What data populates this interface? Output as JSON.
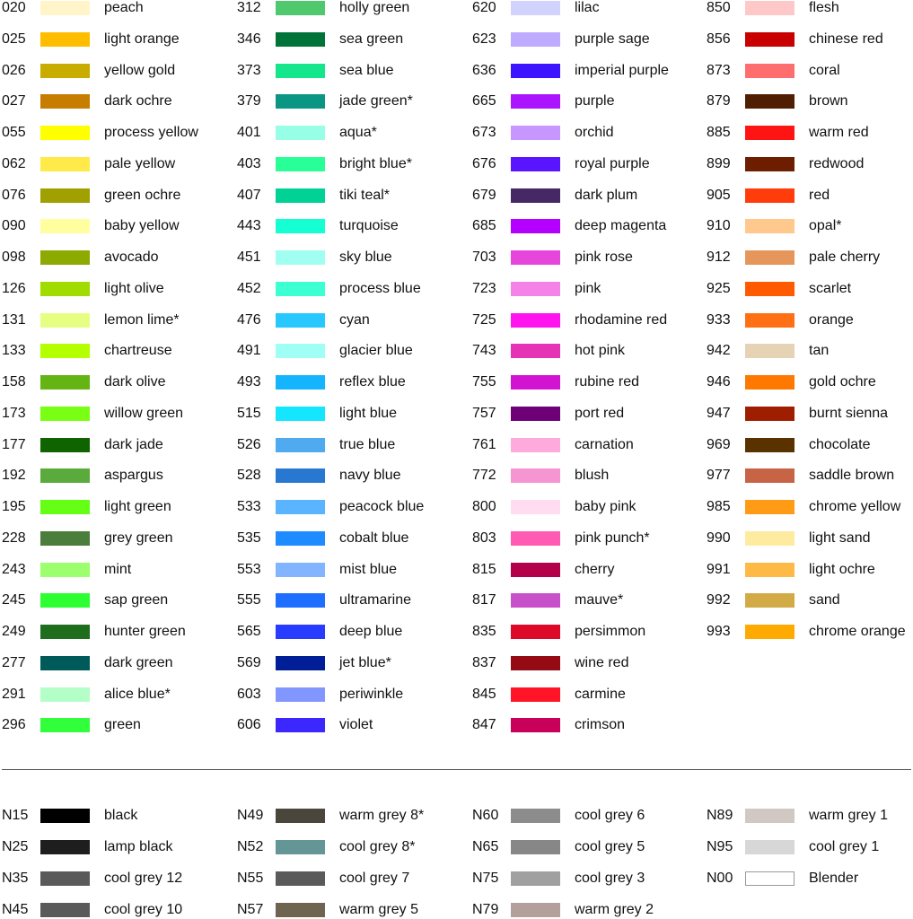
{
  "sections": [
    {
      "columns": [
        [
          {
            "code": "020",
            "name": "peach",
            "color": "#fff5c8"
          },
          {
            "code": "025",
            "name": "light orange",
            "color": "#ffbd00"
          },
          {
            "code": "026",
            "name": "yellow gold",
            "color": "#c8ac00"
          },
          {
            "code": "027",
            "name": "dark ochre",
            "color": "#c77d00"
          },
          {
            "code": "055",
            "name": "process yellow",
            "color": "#ffff00"
          },
          {
            "code": "062",
            "name": "pale yellow",
            "color": "#ffea4a"
          },
          {
            "code": "076",
            "name": "green ochre",
            "color": "#a0a000"
          },
          {
            "code": "090",
            "name": "baby yellow",
            "color": "#ffffa0"
          },
          {
            "code": "098",
            "name": "avocado",
            "color": "#8caa00"
          },
          {
            "code": "126",
            "name": "light olive",
            "color": "#a0dc00"
          },
          {
            "code": "131",
            "name": "lemon lime*",
            "color": "#e6ff82"
          },
          {
            "code": "133",
            "name": "chartreuse",
            "color": "#b4ff00"
          },
          {
            "code": "158",
            "name": "dark olive",
            "color": "#64b414"
          },
          {
            "code": "173",
            "name": "willow green",
            "color": "#78ff14"
          },
          {
            "code": "177",
            "name": "dark jade",
            "color": "#0f6400"
          },
          {
            "code": "192",
            "name": "aspargus",
            "color": "#5aaa3c"
          },
          {
            "code": "195",
            "name": "light green",
            "color": "#64ff14"
          },
          {
            "code": "228",
            "name": "grey green",
            "color": "#4b7d3c"
          },
          {
            "code": "243",
            "name": "mint",
            "color": "#9bff6e"
          },
          {
            "code": "245",
            "name": "sap green",
            "color": "#2dff32"
          },
          {
            "code": "249",
            "name": "hunter green",
            "color": "#1e6e1e"
          },
          {
            "code": "277",
            "name": "dark green",
            "color": "#005a5a"
          },
          {
            "code": "291",
            "name": "alice blue*",
            "color": "#b4ffc8"
          },
          {
            "code": "296",
            "name": "green",
            "color": "#32ff3c"
          }
        ],
        [
          {
            "code": "312",
            "name": "holly green",
            "color": "#50c86e"
          },
          {
            "code": "346",
            "name": "sea green",
            "color": "#007338"
          },
          {
            "code": "373",
            "name": "sea blue",
            "color": "#14e68c"
          },
          {
            "code": "379",
            "name": "jade green*",
            "color": "#0a9682"
          },
          {
            "code": "401",
            "name": "aqua*",
            "color": "#96ffe6"
          },
          {
            "code": "403",
            "name": "bright blue*",
            "color": "#28ff96"
          },
          {
            "code": "407",
            "name": "tiki teal*",
            "color": "#00d296"
          },
          {
            "code": "443",
            "name": "turquoise",
            "color": "#14ffd2"
          },
          {
            "code": "451",
            "name": "sky blue",
            "color": "#a0fff0"
          },
          {
            "code": "452",
            "name": "process blue",
            "color": "#3cffd2"
          },
          {
            "code": "476",
            "name": "cyan",
            "color": "#28c8ff"
          },
          {
            "code": "491",
            "name": "glacier blue",
            "color": "#a0fff5"
          },
          {
            "code": "493",
            "name": "reflex blue",
            "color": "#14b4ff"
          },
          {
            "code": "515",
            "name": "light blue",
            "color": "#14e6ff"
          },
          {
            "code": "526",
            "name": "true blue",
            "color": "#50aaf0"
          },
          {
            "code": "528",
            "name": "navy blue",
            "color": "#2878d2"
          },
          {
            "code": "533",
            "name": "peacock blue",
            "color": "#5ab4ff"
          },
          {
            "code": "535",
            "name": "cobalt blue",
            "color": "#1e8cff"
          },
          {
            "code": "553",
            "name": "mist blue",
            "color": "#82b4ff"
          },
          {
            "code": "555",
            "name": "ultramarine",
            "color": "#1e6eff"
          },
          {
            "code": "565",
            "name": "deep blue",
            "color": "#283cff"
          },
          {
            "code": "569",
            "name": "jet blue*",
            "color": "#001e96"
          },
          {
            "code": "603",
            "name": "periwinkle",
            "color": "#8296ff"
          },
          {
            "code": "606",
            "name": "violet",
            "color": "#3c28ff"
          }
        ],
        [
          {
            "code": "620",
            "name": "lilac",
            "color": "#d2d2ff"
          },
          {
            "code": "623",
            "name": "purple sage",
            "color": "#beaaff"
          },
          {
            "code": "636",
            "name": "imperial purple",
            "color": "#3c14ff"
          },
          {
            "code": "665",
            "name": "purple",
            "color": "#aa14ff"
          },
          {
            "code": "673",
            "name": "orchid",
            "color": "#c896ff"
          },
          {
            "code": "676",
            "name": "royal purple",
            "color": "#5a14ff"
          },
          {
            "code": "679",
            "name": "dark plum",
            "color": "#462864"
          },
          {
            "code": "685",
            "name": "deep magenta",
            "color": "#b400ff"
          },
          {
            "code": "703",
            "name": "pink rose",
            "color": "#e646dc"
          },
          {
            "code": "723",
            "name": "pink",
            "color": "#f582e6"
          },
          {
            "code": "725",
            "name": "rhodamine red",
            "color": "#ff14f0"
          },
          {
            "code": "743",
            "name": "hot pink",
            "color": "#e632b4"
          },
          {
            "code": "755",
            "name": "rubine red",
            "color": "#d214d2"
          },
          {
            "code": "757",
            "name": "port red",
            "color": "#6e0078"
          },
          {
            "code": "761",
            "name": "carnation",
            "color": "#ffaadc"
          },
          {
            "code": "772",
            "name": "blush",
            "color": "#f596d2"
          },
          {
            "code": "800",
            "name": "baby pink",
            "color": "#ffdcf0"
          },
          {
            "code": "803",
            "name": "pink punch*",
            "color": "#ff5ab4"
          },
          {
            "code": "815",
            "name": "cherry",
            "color": "#b4004b"
          },
          {
            "code": "817",
            "name": "mauve*",
            "color": "#c850c8"
          },
          {
            "code": "835",
            "name": "persimmon",
            "color": "#dc0a28"
          },
          {
            "code": "837",
            "name": "wine red",
            "color": "#960a14"
          },
          {
            "code": "845",
            "name": "carmine",
            "color": "#ff1428"
          },
          {
            "code": "847",
            "name": "crimson",
            "color": "#c8005a"
          }
        ],
        [
          {
            "code": "850",
            "name": "flesh",
            "color": "#ffc8c8"
          },
          {
            "code": "856",
            "name": "chinese red",
            "color": "#c80000"
          },
          {
            "code": "873",
            "name": "coral",
            "color": "#ff6e6e"
          },
          {
            "code": "879",
            "name": "brown",
            "color": "#501e00"
          },
          {
            "code": "885",
            "name": "warm red",
            "color": "#ff1414"
          },
          {
            "code": "899",
            "name": "redwood",
            "color": "#6e1e00"
          },
          {
            "code": "905",
            "name": "red",
            "color": "#ff3c0a"
          },
          {
            "code": "910",
            "name": "opal*",
            "color": "#ffc88c"
          },
          {
            "code": "912",
            "name": "pale cherry",
            "color": "#e6965a"
          },
          {
            "code": "925",
            "name": "scarlet",
            "color": "#ff5a00"
          },
          {
            "code": "933",
            "name": "orange",
            "color": "#ff7014"
          },
          {
            "code": "942",
            "name": "tan",
            "color": "#e6d2b4"
          },
          {
            "code": "946",
            "name": "gold ochre",
            "color": "#ff7800"
          },
          {
            "code": "947",
            "name": "burnt sienna",
            "color": "#a01e00"
          },
          {
            "code": "969",
            "name": "chocolate",
            "color": "#5a3200"
          },
          {
            "code": "977",
            "name": "saddle brown",
            "color": "#c86446"
          },
          {
            "code": "985",
            "name": "chrome yellow",
            "color": "#ff9b14"
          },
          {
            "code": "990",
            "name": "light sand",
            "color": "#ffeba0"
          },
          {
            "code": "991",
            "name": "light ochre",
            "color": "#ffb946"
          },
          {
            "code": "992",
            "name": "sand",
            "color": "#d2aa46"
          },
          {
            "code": "993",
            "name": "chrome orange",
            "color": "#ffaa00"
          }
        ]
      ]
    },
    {
      "columns": [
        [
          {
            "code": "N15",
            "name": "black",
            "color": "#000000"
          },
          {
            "code": "N25",
            "name": "lamp black",
            "color": "#1e1e1e"
          },
          {
            "code": "N35",
            "name": "cool grey 12",
            "color": "#5a5a5a"
          },
          {
            "code": "N45",
            "name": "cool grey 10",
            "color": "#5a5a5a"
          }
        ],
        [
          {
            "code": "N49",
            "name": "warm grey 8*",
            "color": "#4b463c"
          },
          {
            "code": "N52",
            "name": "cool grey 8*",
            "color": "#649696"
          },
          {
            "code": "N55",
            "name": "cool grey 7",
            "color": "#5a5a5a"
          },
          {
            "code": "N57",
            "name": "warm grey 5",
            "color": "#6e6450"
          }
        ],
        [
          {
            "code": "N60",
            "name": "cool grey 6",
            "color": "#8c8c8c"
          },
          {
            "code": "N65",
            "name": "cool grey 5",
            "color": "#878787"
          },
          {
            "code": "N75",
            "name": "cool grey 3",
            "color": "#a0a0a0"
          },
          {
            "code": "N79",
            "name": "warm grey 2",
            "color": "#b4a09b"
          }
        ],
        [
          {
            "code": "N89",
            "name": "warm grey 1",
            "color": "#d2c8c3"
          },
          {
            "code": "N95",
            "name": "cool grey 1",
            "color": "#d7d7d7"
          },
          {
            "code": "N00",
            "name": "Blender",
            "color": "#ffffff"
          }
        ]
      ]
    }
  ]
}
